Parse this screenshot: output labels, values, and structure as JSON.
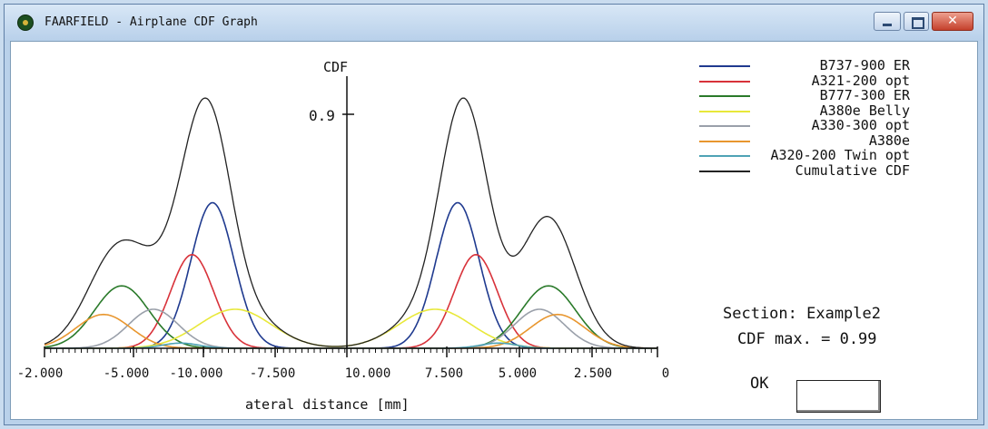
{
  "window": {
    "title": "FAARFIELD - Airplane CDF Graph",
    "close_symbol": "✕"
  },
  "section_text": "Section: Example2",
  "cdf_max_text": "CDF max. = 0.99",
  "ok_label": "OK",
  "chart_data": {
    "type": "line",
    "ylabel": "CDF",
    "xlabel": "ateral distance [mm]",
    "y_tick_label": "0.9",
    "x_tick_labels": [
      "-2.000",
      "-5.000",
      "-10.000",
      "-7.500",
      "10.000",
      "7.500",
      "5.000",
      "2.500",
      "0"
    ],
    "series": [
      {
        "name": "B737-900 ER",
        "color": "#1f3a8f",
        "peaks": [
          {
            "center": -7.6,
            "width": 0.95,
            "height": 0.56
          },
          {
            "center": 3.2,
            "width": 0.95,
            "height": 0.56
          }
        ]
      },
      {
        "name": "A321-200 opt",
        "color": "#d8323a",
        "peaks": [
          {
            "center": -8.5,
            "width": 0.95,
            "height": 0.36
          },
          {
            "center": 4.0,
            "width": 0.95,
            "height": 0.36
          }
        ]
      },
      {
        "name": "B777-300 ER",
        "color": "#2a7a2a",
        "peaks": [
          {
            "center": -11.6,
            "width": 1.2,
            "height": 0.24
          },
          {
            "center": 7.2,
            "width": 1.2,
            "height": 0.24
          }
        ]
      },
      {
        "name": "A380e Belly",
        "color": "#e8e83a",
        "peaks": [
          {
            "center": -6.6,
            "width": 1.6,
            "height": 0.15
          },
          {
            "center": 2.2,
            "width": 1.6,
            "height": 0.15
          }
        ]
      },
      {
        "name": "A330-300 opt",
        "color": "#9aa0aa",
        "peaks": [
          {
            "center": -10.2,
            "width": 1.1,
            "height": 0.15
          },
          {
            "center": 6.8,
            "width": 1.1,
            "height": 0.15
          }
        ]
      },
      {
        "name": "A380e",
        "color": "#e8962e",
        "peaks": [
          {
            "center": -12.4,
            "width": 1.2,
            "height": 0.13
          },
          {
            "center": 7.6,
            "width": 1.2,
            "height": 0.13
          }
        ]
      },
      {
        "name": "A320-200 Twin opt",
        "color": "#4fa3b5",
        "peaks": [
          {
            "center": -9.0,
            "width": 0.8,
            "height": 0.02
          },
          {
            "center": 5.0,
            "width": 0.8,
            "height": 0.02
          }
        ]
      },
      {
        "name": "Cumulative CDF",
        "color": "#222222",
        "cumulative": true
      }
    ]
  }
}
